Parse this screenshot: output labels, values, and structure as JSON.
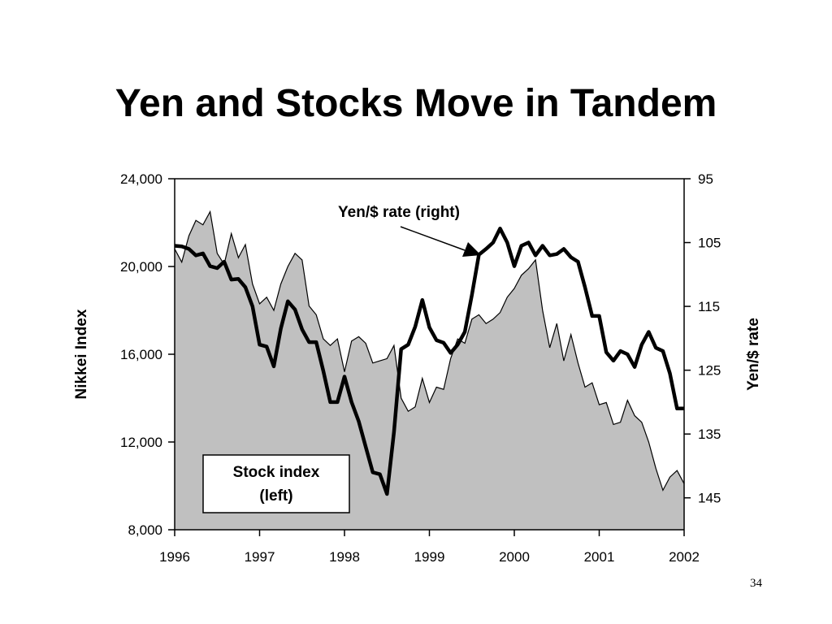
{
  "slide": {
    "title": "Yen and Stocks Move in Tandem",
    "page_number": "34"
  },
  "chart_data": {
    "type": "area",
    "title": "Yen and Stocks Move in Tandem",
    "x_ticks": [
      "1996",
      "1997",
      "1998",
      "1999",
      "2000",
      "2001",
      "2002"
    ],
    "xlim": [
      1996,
      2002
    ],
    "y_left": {
      "label": "Nikkei Index",
      "ticks": [
        "24,000",
        "20,000",
        "16,000",
        "12,000",
        "8,000"
      ],
      "range": [
        8000,
        24000
      ]
    },
    "y_right": {
      "label": "Yen/$ rate",
      "ticks": [
        "95",
        "105",
        "115",
        "125",
        "135",
        "145"
      ],
      "range": [
        95,
        150
      ],
      "inverted": true
    },
    "annotations": {
      "yen_label": "Yen/$ rate (right)",
      "stock_label_line1": "Stock index",
      "stock_label_line2": "(left)"
    },
    "grid": false,
    "series": [
      {
        "name": "Stock index (left)",
        "axis": "left",
        "style": "filled-area",
        "fill": "#c0c0c0",
        "x": [
          1996.0,
          1996.083,
          1996.167,
          1996.25,
          1996.333,
          1996.417,
          1996.5,
          1996.583,
          1996.667,
          1996.75,
          1996.833,
          1996.917,
          1997.0,
          1997.083,
          1997.167,
          1997.25,
          1997.333,
          1997.417,
          1997.5,
          1997.583,
          1997.667,
          1997.75,
          1997.833,
          1997.917,
          1998.0,
          1998.083,
          1998.167,
          1998.25,
          1998.333,
          1998.417,
          1998.5,
          1998.583,
          1998.667,
          1998.75,
          1998.833,
          1998.917,
          1999.0,
          1999.083,
          1999.167,
          1999.25,
          1999.333,
          1999.417,
          1999.5,
          1999.583,
          1999.667,
          1999.75,
          1999.833,
          1999.917,
          2000.0,
          2000.083,
          2000.167,
          2000.25,
          2000.333,
          2000.417,
          2000.5,
          2000.583,
          2000.667,
          2000.75,
          2000.833,
          2000.917,
          2001.0,
          2001.083,
          2001.167,
          2001.25,
          2001.333,
          2001.417,
          2001.5,
          2001.583,
          2001.667,
          2001.75,
          2001.833,
          2001.917,
          2002.0
        ],
        "values": [
          20800,
          20200,
          21400,
          22100,
          21900,
          22500,
          20600,
          20100,
          21500,
          20400,
          21000,
          19200,
          18300,
          18600,
          18000,
          19200,
          20000,
          20600,
          20300,
          18200,
          17800,
          16700,
          16400,
          16700,
          15200,
          16600,
          16800,
          16500,
          15600,
          15700,
          15800,
          16400,
          14000,
          13400,
          13600,
          14900,
          13800,
          14500,
          14400,
          15800,
          16700,
          16500,
          17600,
          17800,
          17400,
          17600,
          17900,
          18600,
          19000,
          19600,
          19900,
          20300,
          18000,
          16300,
          17400,
          15700,
          16900,
          15600,
          14500,
          14700,
          13700,
          13800,
          12800,
          12900,
          13900,
          13200,
          12900,
          12000,
          10800,
          9800,
          10400,
          10700,
          10100
        ]
      },
      {
        "name": "Yen/$ rate (right)",
        "axis": "right",
        "style": "thick-line",
        "color": "#000000",
        "x": [
          1996.0,
          1996.083,
          1996.167,
          1996.25,
          1996.333,
          1996.417,
          1996.5,
          1996.583,
          1996.667,
          1996.75,
          1996.833,
          1996.917,
          1997.0,
          1997.083,
          1997.167,
          1997.25,
          1997.333,
          1997.417,
          1997.5,
          1997.583,
          1997.667,
          1997.75,
          1997.833,
          1997.917,
          1998.0,
          1998.083,
          1998.167,
          1998.25,
          1998.333,
          1998.417,
          1998.5,
          1998.583,
          1998.667,
          1998.75,
          1998.833,
          1998.917,
          1999.0,
          1999.083,
          1999.167,
          1999.25,
          1999.333,
          1999.417,
          1999.5,
          1999.583,
          1999.667,
          1999.75,
          1999.833,
          1999.917,
          2000.0,
          2000.083,
          2000.167,
          2000.25,
          2000.333,
          2000.417,
          2000.5,
          2000.583,
          2000.667,
          2000.75,
          2000.833,
          2000.917,
          2001.0,
          2001.083,
          2001.167,
          2001.25,
          2001.333,
          2001.417,
          2001.5,
          2001.583,
          2001.667,
          2001.75,
          2001.833,
          2001.917,
          2002.0
        ],
        "values": [
          105.5,
          105.6,
          106.0,
          107.0,
          106.7,
          108.7,
          109.0,
          108.0,
          110.8,
          110.7,
          112.0,
          115.0,
          121.0,
          121.3,
          124.4,
          118.5,
          114.2,
          115.5,
          118.6,
          120.6,
          120.6,
          125.1,
          130.0,
          130.0,
          126.0,
          130.0,
          133.0,
          137.0,
          141.0,
          141.3,
          144.4,
          134.7,
          121.7,
          121.0,
          118.2,
          114.0,
          118.3,
          120.3,
          120.7,
          122.3,
          121.0,
          119.0,
          113.2,
          106.9,
          106.0,
          105.0,
          102.8,
          105.0,
          108.7,
          105.5,
          105.0,
          107.0,
          105.5,
          107.0,
          106.8,
          106.0,
          107.3,
          108.0,
          112.0,
          116.5,
          116.5,
          122.2,
          123.5,
          122.0,
          122.5,
          124.5,
          121.0,
          119.0,
          121.5,
          122.0,
          125.5,
          131.0,
          131.0
        ]
      }
    ]
  }
}
